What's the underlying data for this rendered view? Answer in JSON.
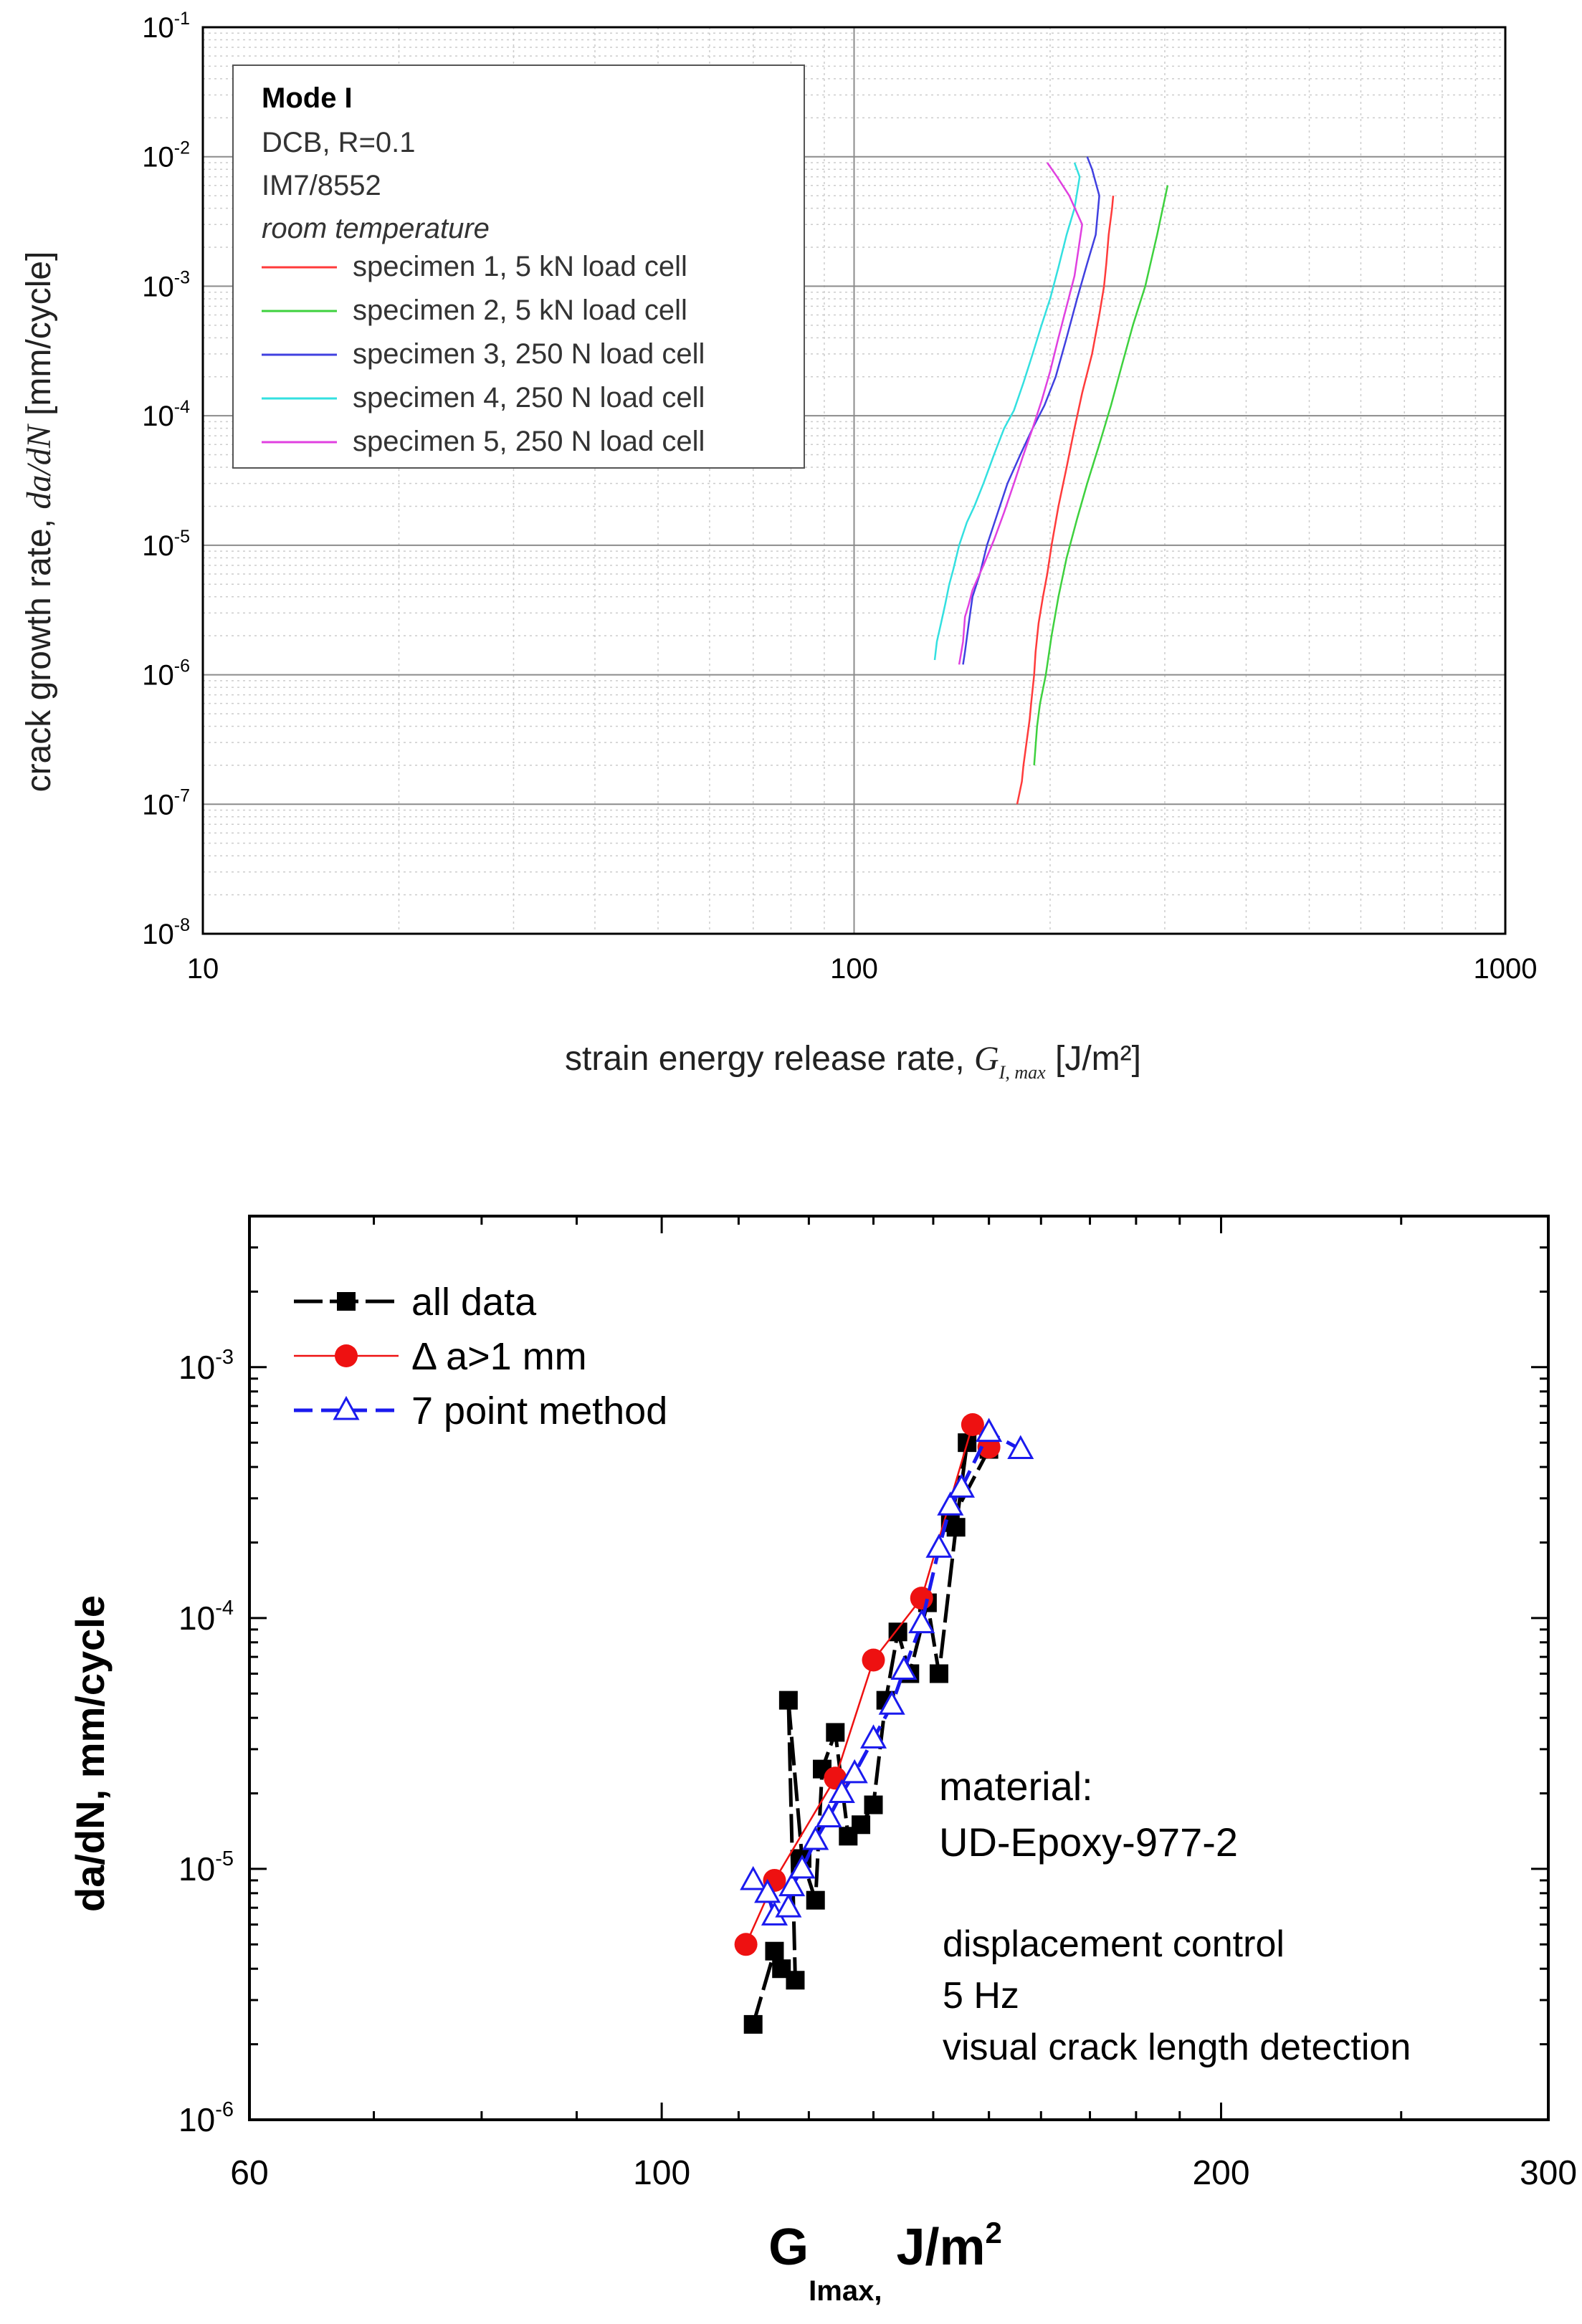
{
  "colors": {
    "c1_red": "#ff3b3b",
    "c1_green": "#3ed13e",
    "c1_blue": "#4040e0",
    "c1_cyan": "#33e0e0",
    "c1_magenta": "#e040e0",
    "c2_black": "#000000",
    "c2_red": "#ee1111",
    "c2_blue": "#1a1aee",
    "grid_major": "#8c8c8c",
    "grid_minor": "#cccccc"
  },
  "chart_data": [
    {
      "type": "line",
      "xscale": "log",
      "yscale": "log",
      "xlim": [
        10,
        1000
      ],
      "ylim": [
        1e-08,
        0.1
      ],
      "grid": true,
      "legend_position": "top-left",
      "xlabel_parts": [
        "strain energy release rate, ",
        "G",
        "I, max",
        " [J/m²]"
      ],
      "ylabel_parts": [
        "crack growth rate, ",
        "da/dN",
        " [mm/cycle]"
      ],
      "x_ticks": [
        {
          "value": 10,
          "label": "10"
        },
        {
          "value": 100,
          "label": "100"
        },
        {
          "value": 1000,
          "label": "1000"
        }
      ],
      "y_ticks": [
        {
          "value": 1e-08,
          "base": "10",
          "exp": "-8"
        },
        {
          "value": 1e-07,
          "base": "10",
          "exp": "-7"
        },
        {
          "value": 1e-06,
          "base": "10",
          "exp": "-6"
        },
        {
          "value": 1e-05,
          "base": "10",
          "exp": "-5"
        },
        {
          "value": 0.0001,
          "base": "10",
          "exp": "-4"
        },
        {
          "value": 0.001,
          "base": "10",
          "exp": "-3"
        },
        {
          "value": 0.01,
          "base": "10",
          "exp": "-2"
        },
        {
          "value": 0.1,
          "base": "10",
          "exp": "-1"
        }
      ],
      "legend_header": {
        "title": "Mode I",
        "line1": "DCB, R=0.1",
        "line2": "IM7/8552",
        "line3": "room temperature"
      },
      "series": [
        {
          "name": "specimen 1, 5 kN load cell",
          "color_key": "c1_red",
          "stroke": 2.5,
          "x": [
            178,
            181,
            182,
            184,
            186,
            187,
            189,
            190,
            192,
            195,
            198,
            201,
            206,
            212,
            218,
            224,
            232,
            238,
            242,
            244,
            246,
            249,
            250
          ],
          "y": [
            1e-07,
            1.5e-07,
            2e-07,
            3e-07,
            4.5e-07,
            6e-07,
            1e-06,
            1.5e-06,
            2.5e-06,
            4e-06,
            6e-06,
            1e-05,
            2e-05,
            4e-05,
            8e-05,
            0.00015,
            0.0003,
            0.0006,
            0.001,
            0.0015,
            0.0025,
            0.004,
            0.005
          ]
        },
        {
          "name": "specimen 2, 5 kN load cell",
          "color_key": "c1_green",
          "stroke": 2.5,
          "x": [
            189,
            191,
            193,
            197,
            201,
            206,
            212,
            220,
            228,
            238,
            248,
            258,
            268,
            280,
            292,
            303
          ],
          "y": [
            2e-07,
            4e-07,
            6e-07,
            1e-06,
            2e-06,
            4e-06,
            8e-06,
            1.6e-05,
            3e-05,
            6e-05,
            0.00012,
            0.00025,
            0.0005,
            0.001,
            0.0025,
            0.006
          ]
        },
        {
          "name": "specimen 3, 250 N load cell",
          "color_key": "c1_blue",
          "stroke": 2.5,
          "x": [
            147,
            148,
            150,
            152,
            156,
            160,
            165,
            172,
            180,
            188,
            196,
            204,
            212,
            220,
            228,
            235,
            238,
            232,
            228
          ],
          "y": [
            1.2e-06,
            1.5e-06,
            2.5e-06,
            4e-06,
            6e-06,
            1e-05,
            1.6e-05,
            3e-05,
            5e-05,
            8e-05,
            0.00012,
            0.0002,
            0.0004,
            0.0008,
            0.0015,
            0.0025,
            0.005,
            0.008,
            0.01
          ]
        },
        {
          "name": "specimen 4, 250 N load cell",
          "color_key": "c1_cyan",
          "stroke": 2.5,
          "x": [
            133,
            134,
            136,
            138,
            140,
            142,
            145,
            149,
            153,
            158,
            164,
            170,
            176,
            182,
            188,
            194,
            200,
            206,
            212,
            218,
            222,
            218
          ],
          "y": [
            1.3e-06,
            1.8e-06,
            2.5e-06,
            3.5e-06,
            5e-06,
            6.5e-06,
            1e-05,
            1.5e-05,
            2e-05,
            3e-05,
            5e-05,
            8e-05,
            0.00011,
            0.00018,
            0.0003,
            0.0005,
            0.0008,
            0.0014,
            0.0025,
            0.004,
            0.007,
            0.009
          ]
        },
        {
          "name": "specimen 5, 250 N load cell",
          "color_key": "c1_magenta",
          "stroke": 2.5,
          "x": [
            145,
            147,
            148,
            150,
            152,
            158,
            164,
            170,
            176,
            182,
            188,
            194,
            200,
            206,
            212,
            218,
            224,
            214,
            205,
            198
          ],
          "y": [
            1.2e-06,
            1.8e-06,
            2.8e-06,
            3.5e-06,
            4.5e-06,
            7e-06,
            1.1e-05,
            1.8e-05,
            3e-05,
            5e-05,
            8e-05,
            0.00013,
            0.00022,
            0.0004,
            0.0007,
            0.0012,
            0.003,
            0.005,
            0.007,
            0.009
          ]
        }
      ]
    },
    {
      "type": "line",
      "xscale": "log",
      "yscale": "log",
      "xlim": [
        60,
        300
      ],
      "ylim": [
        1e-06,
        0.004
      ],
      "grid": false,
      "legend_position": "top-left",
      "xlabel_parts": [
        "G",
        "Imax,",
        " J/m",
        "2"
      ],
      "ylabel": "da/dN, mm/cycle",
      "x_ticks": [
        {
          "value": 60,
          "label": "60"
        },
        {
          "value": 100,
          "label": "100"
        },
        {
          "value": 200,
          "label": "200"
        },
        {
          "value": 300,
          "label": "300"
        }
      ],
      "y_ticks": [
        {
          "value": 1e-06,
          "base": "10",
          "exp": "-6"
        },
        {
          "value": 1e-05,
          "base": "10",
          "exp": "-5"
        },
        {
          "value": 0.0001,
          "base": "10",
          "exp": "-4"
        },
        {
          "value": 0.001,
          "base": "10",
          "exp": "-3"
        }
      ],
      "annotations": {
        "material_label": "material:",
        "material_name": "UD-Epoxy-977-2",
        "cond1": "displacement control",
        "cond2": "5 Hz",
        "cond3": "visual crack length detection"
      },
      "series": [
        {
          "name": "all data",
          "color_key": "c2_black",
          "marker": "square",
          "dash": "long",
          "stroke": 5,
          "x": [
            112,
            115,
            116,
            118,
            117,
            119,
            121,
            122,
            124,
            126,
            128,
            130,
            132,
            134,
            136,
            139,
            141,
            144,
            146,
            143,
            150
          ],
          "y": [
            2.4e-06,
            4.7e-06,
            4e-06,
            3.6e-06,
            4.7e-05,
            1.1e-05,
            7.5e-06,
            2.5e-05,
            3.5e-05,
            1.35e-05,
            1.5e-05,
            1.8e-05,
            4.7e-05,
            8.8e-05,
            6e-05,
            0.000115,
            6e-05,
            0.00023,
            0.0005,
            0.00024,
            0.00047
          ]
        },
        {
          "name": "Δ a>1 mm",
          "color_key": "c2_red",
          "marker": "circle",
          "dash": "solid",
          "stroke": 2.5,
          "x": [
            111,
            115,
            124,
            130,
            138,
            147,
            150
          ],
          "y": [
            5e-06,
            9e-06,
            2.3e-05,
            6.8e-05,
            0.00012,
            0.00059,
            0.00048
          ]
        },
        {
          "name": "7 point method",
          "color_key": "c2_blue",
          "marker": "triangle",
          "dash": "dash",
          "stroke": 5,
          "x": [
            112,
            114,
            115,
            117,
            117.5,
            119,
            121,
            123,
            125,
            127,
            130,
            133,
            135,
            138,
            141,
            143,
            145,
            150,
            156
          ],
          "y": [
            9e-06,
            8e-06,
            6.5e-06,
            7e-06,
            8.5e-06,
            1e-05,
            1.3e-05,
            1.6e-05,
            2e-05,
            2.4e-05,
            3.3e-05,
            4.5e-05,
            6.2e-05,
            9.5e-05,
            0.00019,
            0.00028,
            0.00033,
            0.00055,
            0.00047
          ]
        }
      ]
    }
  ]
}
